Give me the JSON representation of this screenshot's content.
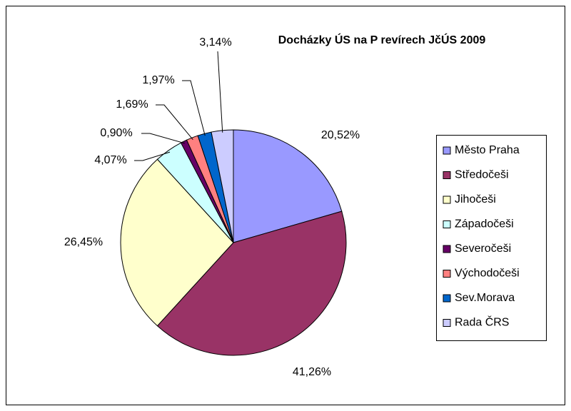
{
  "chart_data": {
    "type": "pie",
    "title": "Docházky ÚS na P revírech JčÚS 2009",
    "categories": [
      "Město Praha",
      "Středočeši",
      "Jihočeši",
      "Západočeši",
      "Severočeši",
      "Východočeši",
      "Sev.Morava",
      "Rada ČRS"
    ],
    "values": [
      20.52,
      41.26,
      26.45,
      4.07,
      0.9,
      1.69,
      1.97,
      3.14
    ],
    "value_labels": [
      "20,52%",
      "41,26%",
      "26,45%",
      "4,07%",
      "0,90%",
      "1,69%",
      "1,97%",
      "3,14%"
    ],
    "colors": [
      "#9999ff",
      "#993366",
      "#ffffcc",
      "#ccffff",
      "#660066",
      "#ff8080",
      "#0066cc",
      "#ccccff"
    ],
    "legend": "right"
  }
}
